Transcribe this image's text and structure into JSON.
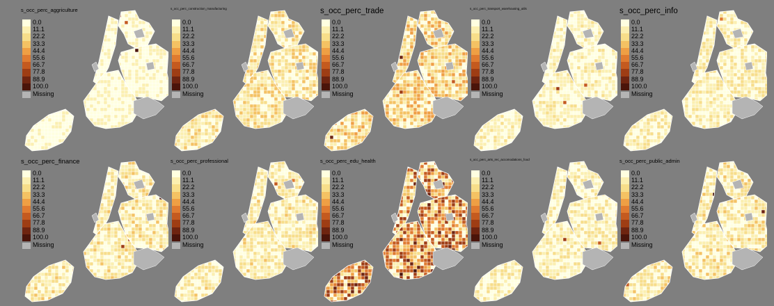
{
  "legend": {
    "ticks": [
      "0.0",
      "11.1",
      "22.2",
      "33.3",
      "44.4",
      "55.6",
      "66.7",
      "77.8",
      "88.9",
      "100.0"
    ],
    "missing_label": "Missing",
    "missing_color": "#b4b4b4",
    "ramp": [
      "#ffffe0",
      "#fbefb0",
      "#f7de8a",
      "#f4c263",
      "#ef9f44",
      "#e07b30",
      "#c45a1f",
      "#9e3d14",
      "#6e2410",
      "#4a140a"
    ]
  },
  "panels": [
    {
      "title": "s_occ_perc_aggriculture",
      "title_size": "small",
      "intensity": 0.15
    },
    {
      "title": "s_occ_perc_construction_manufacturing",
      "title_size": "tiny",
      "intensity": 0.35
    },
    {
      "title": "s_occ_perc_trade",
      "title_size": "large",
      "intensity": 0.45
    },
    {
      "title": "s_occ_perc_transport_warehousing_utils",
      "title_size": "tiny",
      "intensity": 0.2
    },
    {
      "title": "s_occ_perc_info",
      "title_size": "large",
      "intensity": 0.25
    },
    {
      "title": "s_occ_perc_finance",
      "title_size": "medium",
      "intensity": 0.3
    },
    {
      "title": "s_occ_perc_professional",
      "title_size": "small",
      "intensity": 0.28
    },
    {
      "title": "s_occ_perc_edu_health",
      "title_size": "small",
      "intensity": 0.75
    },
    {
      "title": "s_occ_perc_arts_rec_accomodations_food",
      "title_size": "tiny",
      "intensity": 0.25
    },
    {
      "title": "s_occ_perc_public_admin",
      "title_size": "small",
      "intensity": 0.3
    }
  ]
}
